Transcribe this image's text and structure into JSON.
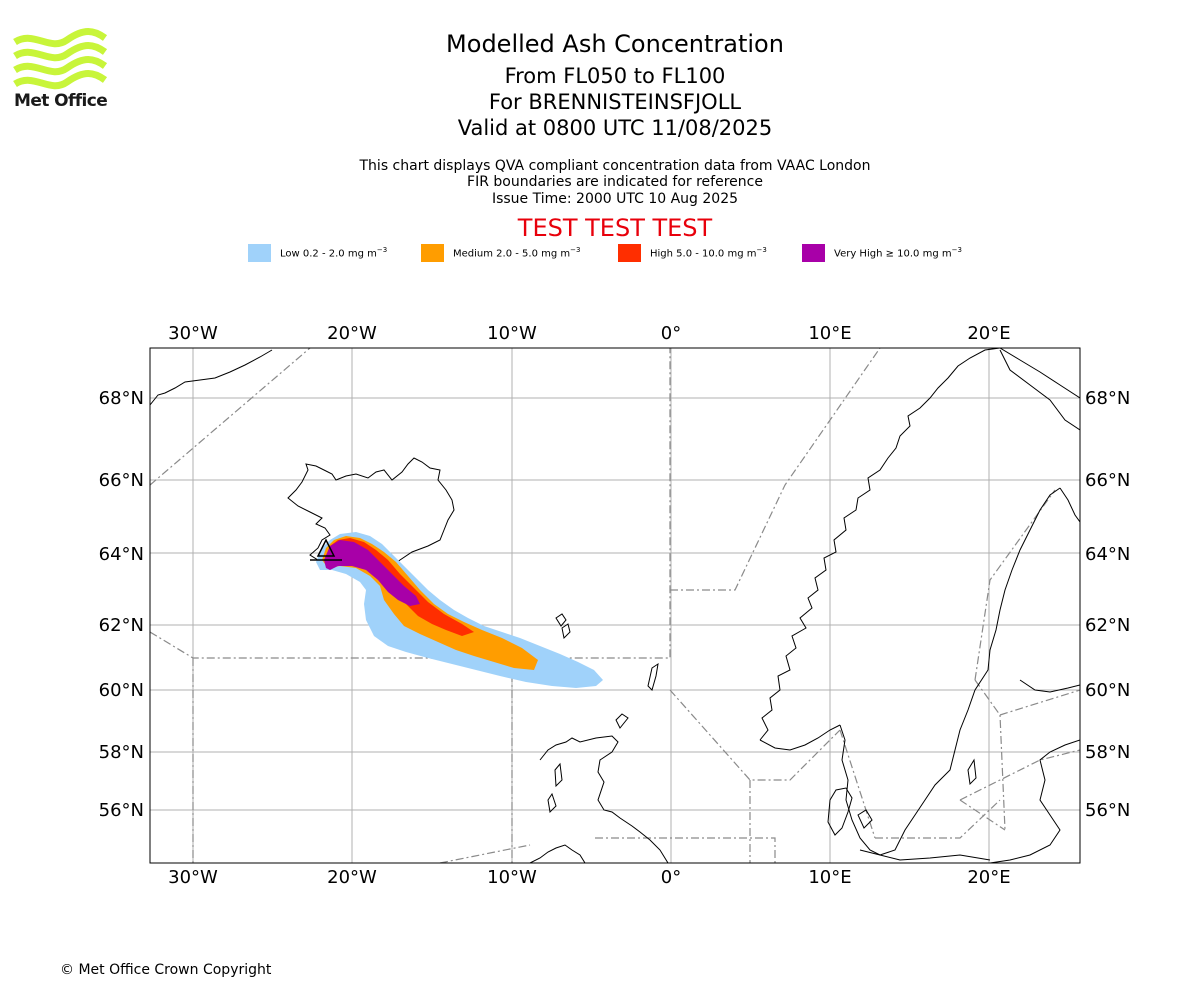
{
  "branding": {
    "logo_text": "Met Office",
    "logo_color": "#c8f53a"
  },
  "header": {
    "title": "Modelled Ash Concentration",
    "level_range": "From FL050 to FL100",
    "volcano_line": "For BRENNISTEINSFJOLL",
    "valid_time": "Valid at 0800 UTC 11/08/2025",
    "description": "This chart displays QVA compliant concentration data from VAAC London",
    "fir_note": "FIR boundaries are indicated for reference",
    "issue_time": "Issue Time: 2000 UTC 10 Aug 2025",
    "test_banner": "TEST TEST TEST"
  },
  "legend": [
    {
      "prefix": "Low 0.2 - 2.0 mg m",
      "exp": "−3",
      "color": "#a0d2fa"
    },
    {
      "prefix": "Medium 2.0 - 5.0 mg m",
      "exp": "−3",
      "color": "#ff9d00"
    },
    {
      "prefix": "High 5.0 - 10.0 mg m",
      "exp": "−3",
      "color": "#ff2e00"
    },
    {
      "prefix": "Very High  ≥  10.0 mg m",
      "exp": "−3",
      "color": "#a800a8"
    }
  ],
  "map": {
    "lon_ticks": [
      "30°W",
      "20°W",
      "10°W",
      "0°",
      "10°E",
      "20°E"
    ],
    "lat_ticks": [
      "68°N",
      "66°N",
      "64°N",
      "62°N",
      "60°N",
      "58°N",
      "56°N"
    ],
    "extent": {
      "lon_min": -32.7,
      "lon_max": 25.6,
      "lat_min": 54.6,
      "lat_max": 69.3
    },
    "projection": "Mercator",
    "grid": true,
    "volcano_marker": {
      "lon": -21.6,
      "lat": 63.93
    }
  },
  "footer": {
    "copyright": "© Met Office Crown Copyright"
  }
}
